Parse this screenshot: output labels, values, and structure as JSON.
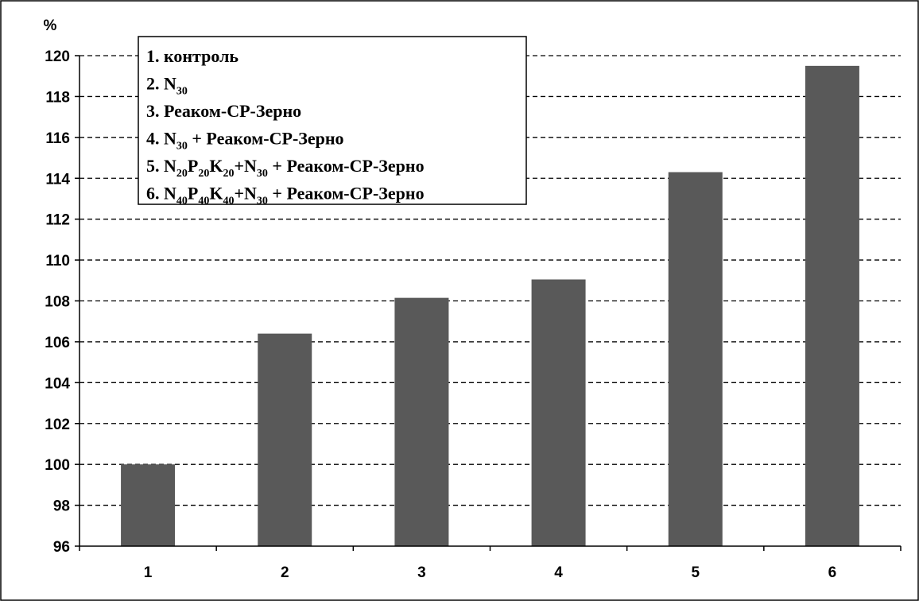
{
  "chart_data": {
    "type": "bar",
    "categories": [
      "1",
      "2",
      "3",
      "4",
      "5",
      "6"
    ],
    "values": [
      100.0,
      106.4,
      108.15,
      109.05,
      114.3,
      119.5
    ],
    "ylabel": "%",
    "xlabel": "",
    "ylim": [
      96,
      120
    ],
    "yticks": [
      96,
      98,
      100,
      102,
      104,
      106,
      108,
      110,
      112,
      114,
      116,
      118,
      120
    ],
    "grid": true,
    "bar_color": "#595959",
    "legend": {
      "placement": "top-left",
      "entries": [
        [
          {
            "t": "1. контроль"
          }
        ],
        [
          {
            "t": "2. N"
          },
          {
            "t": "30",
            "sub": true
          }
        ],
        [
          {
            "t": "3. Реаком-СР-Зерно"
          }
        ],
        [
          {
            "t": "4. N"
          },
          {
            "t": "30",
            "sub": true
          },
          {
            "t": " + Реаком-СР-Зерно"
          }
        ],
        [
          {
            "t": "5. N"
          },
          {
            "t": "20",
            "sub": true
          },
          {
            "t": "P"
          },
          {
            "t": "20",
            "sub": true
          },
          {
            "t": "K"
          },
          {
            "t": "20",
            "sub": true
          },
          {
            "t": "+N"
          },
          {
            "t": "30",
            "sub": true
          },
          {
            "t": " + Реаком-СР-Зерно"
          }
        ],
        [
          {
            "t": "6. N"
          },
          {
            "t": "40",
            "sub": true
          },
          {
            "t": "P"
          },
          {
            "t": "40",
            "sub": true
          },
          {
            "t": "K"
          },
          {
            "t": "40",
            "sub": true
          },
          {
            "t": "+N"
          },
          {
            "t": "30",
            "sub": true
          },
          {
            "t": " + Реаком-СР-Зерно"
          }
        ]
      ]
    }
  }
}
